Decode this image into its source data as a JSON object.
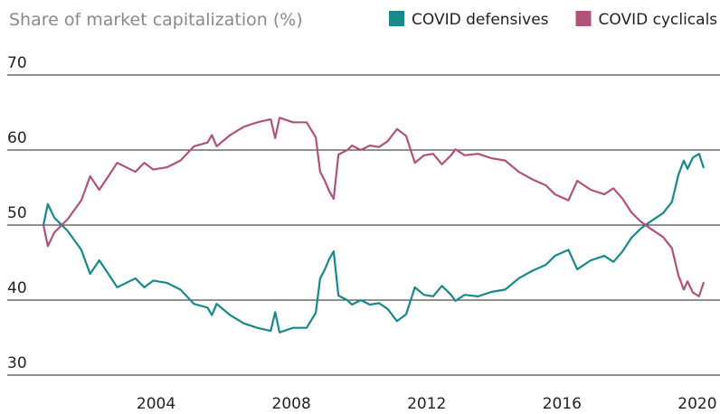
{
  "chart_data": {
    "type": "line",
    "title": "Share of market capitalization (%)",
    "x": [
      2000.67,
      2000.8,
      2000.99,
      2001.39,
      2001.79,
      2002.05,
      2002.32,
      2002.59,
      2002.85,
      2003.39,
      2003.65,
      2003.92,
      2004.32,
      2004.72,
      2005.12,
      2005.52,
      2005.65,
      2005.79,
      2006.19,
      2006.59,
      2006.99,
      2007.39,
      2007.52,
      2007.65,
      2008.05,
      2008.45,
      2008.72,
      2008.85,
      2008.99,
      2009.12,
      2009.25,
      2009.39,
      2009.65,
      2009.79,
      2010.05,
      2010.32,
      2010.59,
      2010.85,
      2011.12,
      2011.39,
      2011.52,
      2011.65,
      2011.92,
      2012.19,
      2012.45,
      2012.72,
      2012.85,
      2013.12,
      2013.52,
      2013.92,
      2014.32,
      2014.72,
      2015.12,
      2015.52,
      2015.79,
      2016.19,
      2016.45,
      2016.85,
      2017.25,
      2017.52,
      2017.79,
      2018.05,
      2018.32,
      2018.59,
      2018.99,
      2019.25,
      2019.44,
      2019.6,
      2019.71,
      2019.87,
      2020.05,
      2020.19
    ],
    "series": [
      {
        "name": "COVID defensives",
        "color": "#17898a",
        "values": [
          50.0,
          52.8,
          51.0,
          49.2,
          46.7,
          43.5,
          45.3,
          43.5,
          41.7,
          42.9,
          41.7,
          42.6,
          42.3,
          41.4,
          39.5,
          39.0,
          38.0,
          39.5,
          38.0,
          36.9,
          36.3,
          35.9,
          38.4,
          35.7,
          36.3,
          36.3,
          38.3,
          42.9,
          44.1,
          45.5,
          46.5,
          40.6,
          40.0,
          39.4,
          40.0,
          39.4,
          39.6,
          38.8,
          37.2,
          38.1,
          39.9,
          41.7,
          40.7,
          40.5,
          41.9,
          40.7,
          39.9,
          40.7,
          40.5,
          41.1,
          41.4,
          42.9,
          43.9,
          44.7,
          45.9,
          46.7,
          44.1,
          45.3,
          45.9,
          45.1,
          46.5,
          48.3,
          49.5,
          50.4,
          51.6,
          53.1,
          56.7,
          58.6,
          57.5,
          59.0,
          59.5,
          57.6
        ]
      },
      {
        "name": "COVID cyclicals",
        "color": "#b0527c",
        "values": [
          50.0,
          47.2,
          49.0,
          50.8,
          53.3,
          56.5,
          54.7,
          56.5,
          58.3,
          57.1,
          58.3,
          57.4,
          57.7,
          58.6,
          60.5,
          61.0,
          62.0,
          60.5,
          62.0,
          63.1,
          63.7,
          64.1,
          61.6,
          64.3,
          63.7,
          63.7,
          61.7,
          57.1,
          55.9,
          54.5,
          53.5,
          59.4,
          60.0,
          60.6,
          60.0,
          60.6,
          60.4,
          61.2,
          62.8,
          61.9,
          60.1,
          58.3,
          59.3,
          59.5,
          58.1,
          59.3,
          60.1,
          59.3,
          59.5,
          58.9,
          58.6,
          57.1,
          56.1,
          55.3,
          54.1,
          53.3,
          55.9,
          54.7,
          54.1,
          54.9,
          53.5,
          51.7,
          50.5,
          49.6,
          48.4,
          46.9,
          43.3,
          41.4,
          42.5,
          41.0,
          40.5,
          42.4
        ]
      }
    ],
    "xlim": [
      1999.6,
      2020.67
    ],
    "xticks": [
      2004,
      2008,
      2012,
      2016,
      2020
    ],
    "ylim": [
      30,
      70
    ],
    "yticks": [
      30,
      40,
      50,
      60,
      70
    ],
    "grid": true
  }
}
